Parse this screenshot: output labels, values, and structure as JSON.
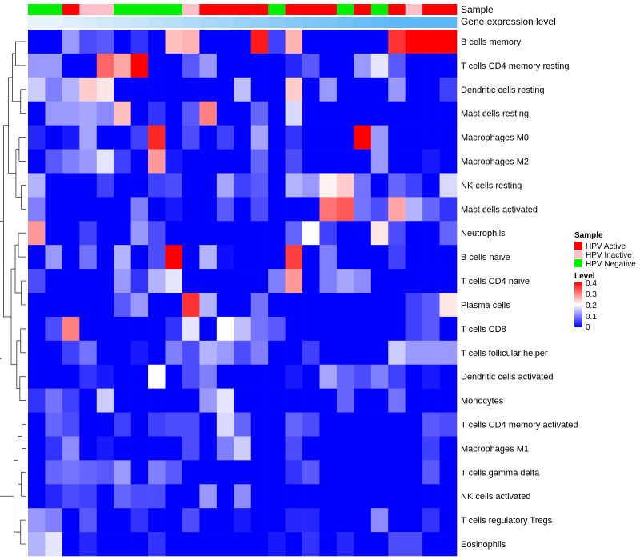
{
  "chart_data": {
    "type": "heatmap",
    "annotation_tracks": [
      "Sample",
      "Gene expression level"
    ],
    "rows": [
      "B cells memory",
      "T cells CD4 memory resting",
      "Dendritic cells resting",
      "Mast cells resting",
      "Macrophages M0",
      "Macrophages M2",
      "NK cells resting",
      "Mast cells activated",
      "Neutrophils",
      "B cells naive",
      "T cells CD4 naive",
      "Plasma cells",
      "T cells CD8",
      "T cells follicular helper",
      "Dendritic cells activated",
      "Monocytes",
      "T cells CD4 memory activated",
      "Macrophages M1",
      "T cells gamma delta",
      "NK cells activated",
      "T cells regulatory  Tregs",
      "Eosinophils"
    ],
    "sample_groups": [
      "neg",
      "neg",
      "act",
      "inact",
      "inact",
      "neg",
      "neg",
      "neg",
      "neg",
      "inact",
      "act",
      "act",
      "act",
      "act",
      "neg",
      "act",
      "act",
      "act",
      "neg",
      "act",
      "neg",
      "act",
      "inact",
      "act",
      "act"
    ],
    "expression_levels": [
      0.0,
      0.0,
      0.02,
      0.04,
      0.06,
      0.08,
      0.1,
      0.12,
      0.14,
      0.16,
      0.18,
      0.2,
      0.22,
      0.24,
      0.26,
      0.28,
      0.3,
      0.32,
      0.34,
      0.36,
      0.38,
      0.4,
      0.4,
      0.4,
      0.4
    ],
    "values": [
      [
        0.0,
        0.0,
        0.12,
        0.06,
        0.07,
        0.0,
        0.04,
        0.0,
        0.25,
        0.26,
        0.0,
        0.0,
        0.0,
        0.38,
        0.05,
        0.26,
        0.0,
        0.0,
        0.0,
        0.0,
        0.0,
        0.36,
        0.4,
        0.4,
        0.4
      ],
      [
        0.12,
        0.12,
        0.0,
        0.0,
        0.32,
        0.27,
        0.4,
        0.0,
        0.0,
        0.07,
        0.12,
        0.0,
        0.0,
        0.0,
        0.0,
        0.03,
        0.07,
        0.0,
        0.0,
        0.12,
        0.18,
        0.07,
        0.0,
        0.0,
        0.0
      ],
      [
        0.16,
        0.1,
        0.14,
        0.24,
        0.22,
        0.0,
        0.0,
        0.0,
        0.0,
        0.0,
        0.0,
        0.0,
        0.15,
        0.0,
        0.0,
        0.24,
        0.0,
        0.12,
        0.0,
        0.0,
        0.0,
        0.12,
        0.0,
        0.0,
        0.05
      ],
      [
        0.0,
        0.12,
        0.12,
        0.13,
        0.11,
        0.25,
        0.0,
        0.04,
        0.0,
        0.07,
        0.3,
        0.0,
        0.0,
        0.08,
        0.0,
        0.17,
        0.0,
        0.0,
        0.0,
        0.0,
        0.0,
        0.0,
        0.0,
        0.0,
        0.0
      ],
      [
        0.03,
        0.0,
        0.02,
        0.13,
        0.0,
        0.0,
        0.05,
        0.37,
        0.0,
        0.06,
        0.0,
        0.05,
        0.0,
        0.13,
        0.0,
        0.04,
        0.0,
        0.0,
        0.0,
        0.4,
        0.12,
        0.0,
        0.0,
        0.0,
        0.0
      ],
      [
        0.0,
        0.07,
        0.1,
        0.12,
        0.18,
        0.05,
        0.0,
        0.28,
        0.02,
        0.0,
        0.0,
        0.0,
        0.0,
        0.08,
        0.0,
        0.06,
        0.0,
        0.0,
        0.0,
        0.0,
        0.12,
        0.0,
        0.0,
        0.02,
        0.0
      ],
      [
        0.14,
        0.0,
        0.0,
        0.0,
        0.05,
        0.0,
        0.0,
        0.05,
        0.06,
        0.0,
        0.0,
        0.13,
        0.05,
        0.07,
        0.0,
        0.14,
        0.12,
        0.21,
        0.24,
        0.09,
        0.0,
        0.08,
        0.05,
        0.0,
        0.17
      ],
      [
        0.1,
        0.0,
        0.0,
        0.0,
        0.0,
        0.0,
        0.1,
        0.0,
        0.02,
        0.0,
        0.0,
        0.07,
        0.0,
        0.06,
        0.0,
        0.0,
        0.0,
        0.31,
        0.33,
        0.09,
        0.06,
        0.27,
        0.14,
        0.08,
        0.04
      ],
      [
        0.28,
        0.0,
        0.0,
        0.05,
        0.0,
        0.0,
        0.12,
        0.06,
        0.0,
        0.0,
        0.0,
        0.0,
        0.0,
        0.0,
        0.0,
        0.08,
        0.2,
        0.05,
        0.0,
        0.0,
        0.22,
        0.06,
        0.0,
        0.0,
        0.08
      ],
      [
        0.0,
        0.12,
        0.0,
        0.09,
        0.0,
        0.14,
        0.0,
        0.06,
        0.4,
        0.0,
        0.14,
        0.01,
        0.0,
        0.0,
        0.0,
        0.35,
        0.0,
        0.1,
        0.0,
        0.0,
        0.0,
        0.05,
        0.0,
        0.0,
        0.0
      ],
      [
        0.06,
        0.0,
        0.0,
        0.0,
        0.0,
        0.12,
        0.04,
        0.14,
        0.18,
        0.0,
        0.0,
        0.0,
        0.0,
        0.0,
        0.1,
        0.28,
        0.0,
        0.1,
        0.13,
        0.11,
        0.0,
        0.0,
        0.0,
        0.0,
        0.0
      ],
      [
        0.0,
        0.0,
        0.0,
        0.0,
        0.0,
        0.07,
        0.12,
        0.0,
        0.0,
        0.36,
        0.14,
        0.0,
        0.0,
        0.09,
        0.0,
        0.0,
        0.0,
        0.0,
        0.0,
        0.0,
        0.0,
        0.0,
        0.05,
        0.07,
        0.22
      ],
      [
        0.0,
        0.06,
        0.3,
        0.0,
        0.0,
        0.0,
        0.0,
        0.0,
        0.04,
        0.18,
        0.0,
        0.2,
        0.15,
        0.09,
        0.07,
        0.0,
        0.0,
        0.0,
        0.0,
        0.0,
        0.0,
        0.0,
        0.05,
        0.07,
        0.0
      ],
      [
        0.0,
        0.0,
        0.05,
        0.09,
        0.0,
        0.0,
        0.02,
        0.0,
        0.1,
        0.06,
        0.14,
        0.12,
        0.06,
        0.1,
        0.0,
        0.0,
        0.05,
        0.0,
        0.0,
        0.0,
        0.0,
        0.16,
        0.12,
        0.12,
        0.12
      ],
      [
        0.0,
        0.0,
        0.0,
        0.04,
        0.02,
        0.0,
        0.0,
        0.2,
        0.0,
        0.06,
        0.1,
        0.0,
        0.0,
        0.0,
        0.0,
        0.02,
        0.0,
        0.13,
        0.08,
        0.06,
        0.1,
        0.05,
        0.0,
        0.02,
        0.0
      ],
      [
        0.04,
        0.09,
        0.05,
        0.0,
        0.16,
        0.0,
        0.0,
        0.0,
        0.0,
        0.0,
        0.12,
        0.18,
        0.0,
        0.0,
        0.0,
        0.0,
        0.0,
        0.0,
        0.08,
        0.0,
        0.0,
        0.09,
        0.0,
        0.0,
        0.0
      ],
      [
        0.0,
        0.08,
        0.06,
        0.0,
        0.0,
        0.05,
        0.0,
        0.05,
        0.06,
        0.06,
        0.0,
        0.17,
        0.08,
        0.0,
        0.0,
        0.08,
        0.06,
        0.0,
        0.0,
        0.0,
        0.0,
        0.0,
        0.0,
        0.07,
        0.06
      ],
      [
        0.0,
        0.04,
        0.11,
        0.0,
        0.02,
        0.0,
        0.0,
        0.0,
        0.0,
        0.06,
        0.0,
        0.1,
        0.16,
        0.0,
        0.0,
        0.06,
        0.0,
        0.0,
        0.0,
        0.0,
        0.0,
        0.0,
        0.0,
        0.05,
        0.0
      ],
      [
        0.0,
        0.08,
        0.09,
        0.08,
        0.07,
        0.12,
        0.0,
        0.1,
        0.07,
        0.0,
        0.0,
        0.0,
        0.0,
        0.0,
        0.0,
        0.04,
        0.07,
        0.0,
        0.0,
        0.0,
        0.0,
        0.0,
        0.0,
        0.07,
        0.0
      ],
      [
        0.0,
        0.03,
        0.06,
        0.05,
        0.0,
        0.08,
        0.06,
        0.06,
        0.0,
        0.0,
        0.12,
        0.0,
        0.11,
        0.0,
        0.0,
        0.0,
        0.0,
        0.0,
        0.0,
        0.0,
        0.0,
        0.0,
        0.0,
        0.0,
        0.0
      ],
      [
        0.12,
        0.1,
        0.0,
        0.07,
        0.0,
        0.0,
        0.04,
        0.0,
        0.0,
        0.06,
        0.0,
        0.0,
        0.02,
        0.0,
        0.0,
        0.03,
        0.03,
        0.0,
        0.0,
        0.0,
        0.11,
        0.0,
        0.0,
        0.04,
        0.0
      ],
      [
        0.14,
        0.18,
        0.0,
        0.03,
        0.0,
        0.0,
        0.0,
        0.04,
        0.0,
        0.0,
        0.0,
        0.0,
        0.0,
        0.0,
        0.02,
        0.0,
        0.04,
        0.0,
        0.03,
        0.0,
        0.0,
        0.06,
        0.06,
        0.0,
        0.0
      ]
    ],
    "row_dendrogram": [
      [
        [
          0,
          1
        ],
        0.7
      ],
      [
        [
          2,
          3
        ],
        0.35
      ],
      [
        [
          4,
          5
        ],
        0.45
      ],
      [
        [
          6,
          7
        ],
        0.3
      ],
      [
        [
          8,
          9
        ],
        0.5
      ],
      [
        [
          10,
          11
        ],
        0.3
      ],
      [
        [
          12,
          13
        ],
        0.35
      ],
      [
        [
          14,
          15
        ],
        0.4
      ],
      [
        [
          16,
          17
        ],
        0.25
      ],
      [
        [
          18,
          19
        ],
        0.3
      ],
      [
        [
          20,
          21
        ],
        0.35
      ]
    ],
    "legend_sample": {
      "title": "Sample",
      "entries": [
        {
          "label": "HPV Active",
          "key": "act"
        },
        {
          "label": "HPV Inactive",
          "key": "inact"
        },
        {
          "label": "HPV Negative",
          "key": "neg"
        }
      ]
    },
    "legend_level": {
      "title": "Level",
      "ticks": [
        0.4,
        0.3,
        0.2,
        0.1,
        0
      ]
    },
    "colors": {
      "act": "#ff0000",
      "inact": "#ffc0cb",
      "neg": "#00ee00",
      "low": "#0000ff",
      "mid": "#ffffff",
      "high": "#ff0000",
      "expr_low": "#e8f2fb",
      "expr_high": "#5bb8f5"
    }
  }
}
